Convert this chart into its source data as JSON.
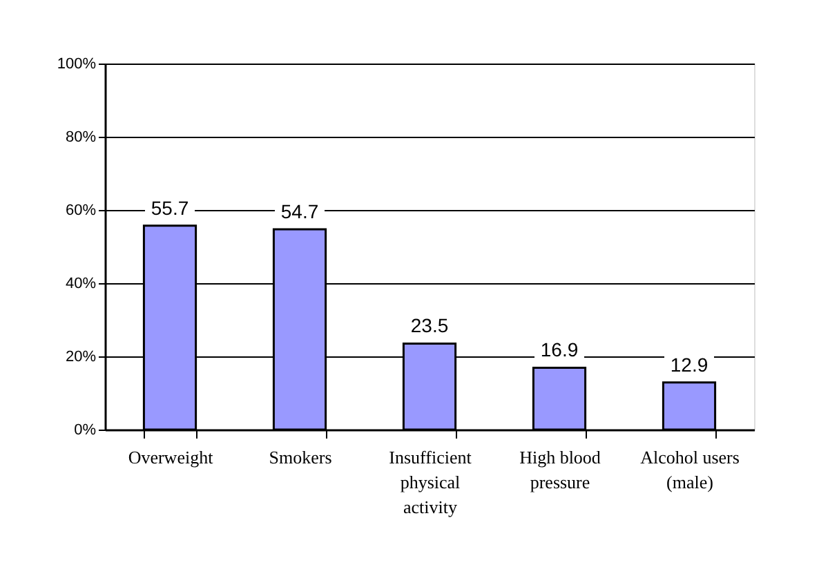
{
  "chart_data": {
    "type": "bar",
    "categories": [
      "Overweight",
      "Smokers",
      "Insufficient physical activity",
      "High blood pressure",
      "Alcohol users (male)"
    ],
    "values": [
      55.7,
      54.7,
      23.5,
      16.9,
      12.9
    ],
    "color": "#9999ff",
    "ylim": [
      0,
      100
    ],
    "yticks": [
      {
        "value": 0,
        "label": "0%"
      },
      {
        "value": 20,
        "label": "20%"
      },
      {
        "value": 40,
        "label": "40%"
      },
      {
        "value": 60,
        "label": "60%"
      },
      {
        "value": 80,
        "label": "80%"
      },
      {
        "value": 100,
        "label": "100%"
      }
    ],
    "grid": "y",
    "data_labels": true
  }
}
